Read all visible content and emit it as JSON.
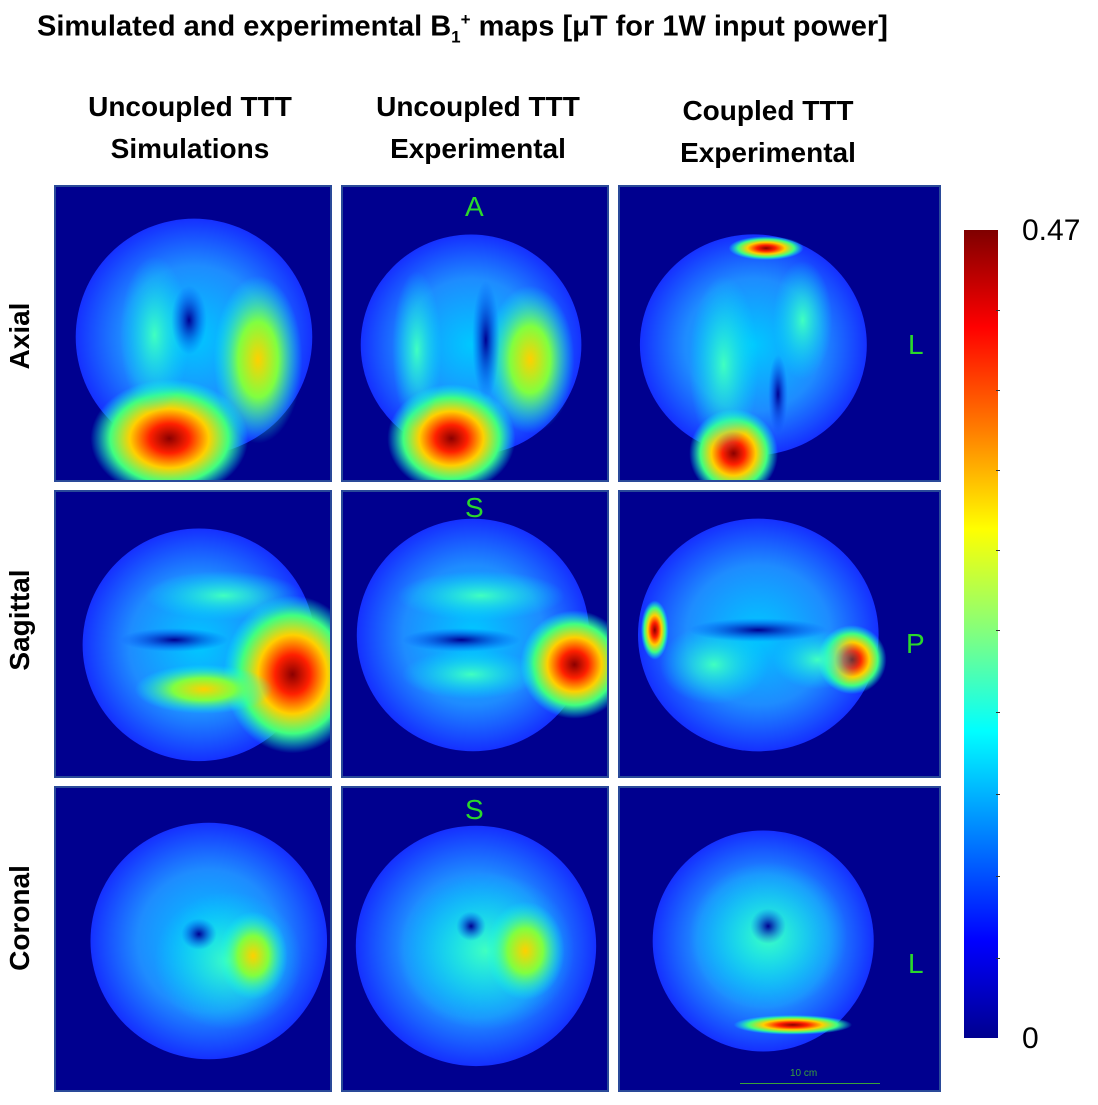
{
  "title": {
    "pre": "Simulated and experimental B",
    "sub": "1",
    "sup": "+",
    "post": " maps [μT for 1W input power]"
  },
  "columns": [
    {
      "line1": "Uncoupled TTT",
      "line2": "Simulations"
    },
    {
      "line1": "Uncoupled TTT",
      "line2": "Experimental"
    },
    {
      "line1": "Coupled TTT",
      "line2": "Experimental"
    }
  ],
  "rows": [
    "Axial",
    "Sagittal",
    "Coronal"
  ],
  "orientation_labels": {
    "axial_top": "A",
    "axial_right": "L",
    "sagittal_top": "S",
    "sagittal_right": "P",
    "coronal_top": "S",
    "coronal_right": "L"
  },
  "colorbar": {
    "max_label": "0.47",
    "min_label": "0",
    "colormap": "jet"
  },
  "scale_bar": {
    "label": "10 cm"
  }
}
